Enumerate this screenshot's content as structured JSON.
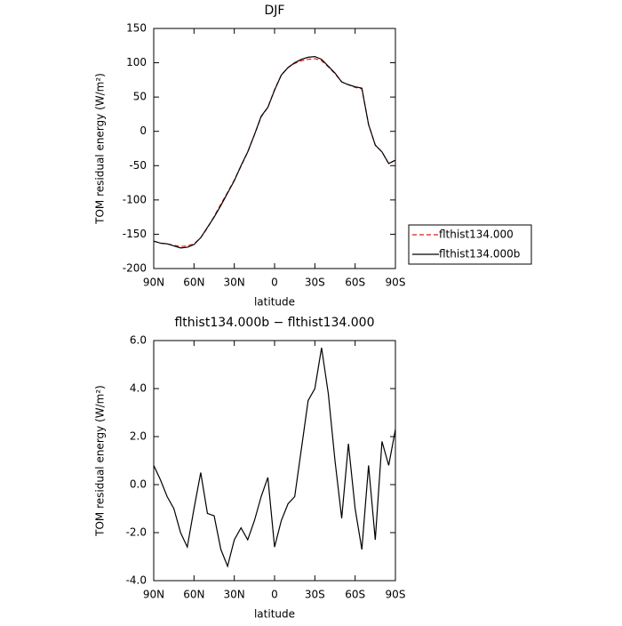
{
  "chart_data": [
    {
      "type": "line",
      "title": "DJF",
      "xlabel": "latitude",
      "ylabel": "TOM residual energy (W/m²)",
      "x": [
        90,
        85,
        80,
        75,
        70,
        65,
        60,
        55,
        50,
        45,
        40,
        35,
        30,
        25,
        20,
        15,
        10,
        5,
        0,
        -5,
        -10,
        -15,
        -20,
        -25,
        -30,
        -35,
        -40,
        -45,
        -50,
        -55,
        -60,
        -65,
        -70,
        -75,
        -80,
        -85,
        -90
      ],
      "xlim": [
        90,
        -90
      ],
      "xticks": [
        {
          "value": 90,
          "label": "90N"
        },
        {
          "value": 60,
          "label": "60N"
        },
        {
          "value": 30,
          "label": "30N"
        },
        0,
        {
          "value": -30,
          "label": "30S"
        },
        {
          "value": -60,
          "label": "60S"
        },
        {
          "value": -90,
          "label": "90S"
        }
      ],
      "ylim": [
        -200,
        150
      ],
      "yticks": [
        -200,
        -150,
        -100,
        -50,
        0,
        50,
        100,
        150
      ],
      "series": [
        {
          "name": "flthist134.000",
          "color": "#e41a1c",
          "dashed": true,
          "values": [
            -160,
            -163,
            -164,
            -166,
            -168,
            -167,
            -164,
            -155,
            -141,
            -124,
            -106,
            -89,
            -71,
            -51,
            -30,
            -5,
            21,
            35,
            61,
            82,
            93,
            99,
            103,
            105,
            106,
            103,
            94,
            84,
            72,
            68,
            64,
            62,
            10,
            -20,
            -30,
            -47,
            -42
          ]
        },
        {
          "name": "flthist134.000b",
          "color": "#000000",
          "dashed": false,
          "values": [
            -160,
            -163,
            -164,
            -167,
            -170,
            -169,
            -165,
            -155,
            -140,
            -125,
            -108,
            -90,
            -72,
            -50,
            -30,
            -5,
            22,
            35,
            60,
            82,
            93,
            100,
            105,
            108,
            109,
            105,
            95,
            85,
            72,
            68,
            65,
            63,
            10,
            -20,
            -30,
            -47,
            -42
          ]
        }
      ]
    },
    {
      "type": "line",
      "title": "flthist134.000b − flthist134.000",
      "xlabel": "latitude",
      "ylabel": "TOM residual energy (W/m²)",
      "x": [
        90,
        85,
        80,
        75,
        70,
        65,
        60,
        55,
        50,
        45,
        40,
        35,
        30,
        25,
        20,
        15,
        10,
        5,
        0,
        -5,
        -10,
        -15,
        -20,
        -25,
        -30,
        -35,
        -40,
        -45,
        -50,
        -55,
        -60,
        -65,
        -70,
        -75,
        -80,
        -85,
        -90
      ],
      "xlim": [
        90,
        -90
      ],
      "xticks": [
        {
          "value": 90,
          "label": "90N"
        },
        {
          "value": 60,
          "label": "60N"
        },
        {
          "value": 30,
          "label": "30N"
        },
        0,
        {
          "value": -30,
          "label": "30S"
        },
        {
          "value": -60,
          "label": "60S"
        },
        {
          "value": -90,
          "label": "90S"
        }
      ],
      "ylim": [
        -4,
        6
      ],
      "yticks": [
        {
          "value": -4,
          "label": "-4.0"
        },
        {
          "value": -2,
          "label": "-2.0"
        },
        {
          "value": 0,
          "label": "0.0"
        },
        {
          "value": 2,
          "label": "2.0"
        },
        {
          "value": 4,
          "label": "4.0"
        },
        {
          "value": 6,
          "label": "6.0"
        }
      ],
      "color": "#000000",
      "values": [
        0.8,
        0.2,
        -0.5,
        -1.0,
        -2.0,
        -2.6,
        -1.0,
        0.5,
        -1.2,
        -1.3,
        -2.7,
        -3.4,
        -2.3,
        -1.8,
        -2.3,
        -1.5,
        -0.5,
        0.3,
        -2.6,
        -1.5,
        -0.8,
        -0.5,
        1.5,
        3.5,
        4.0,
        5.7,
        3.8,
        1.0,
        -1.4,
        1.7,
        -1.0,
        -2.7,
        0.8,
        -2.3,
        1.8,
        0.8,
        2.3
      ]
    }
  ]
}
